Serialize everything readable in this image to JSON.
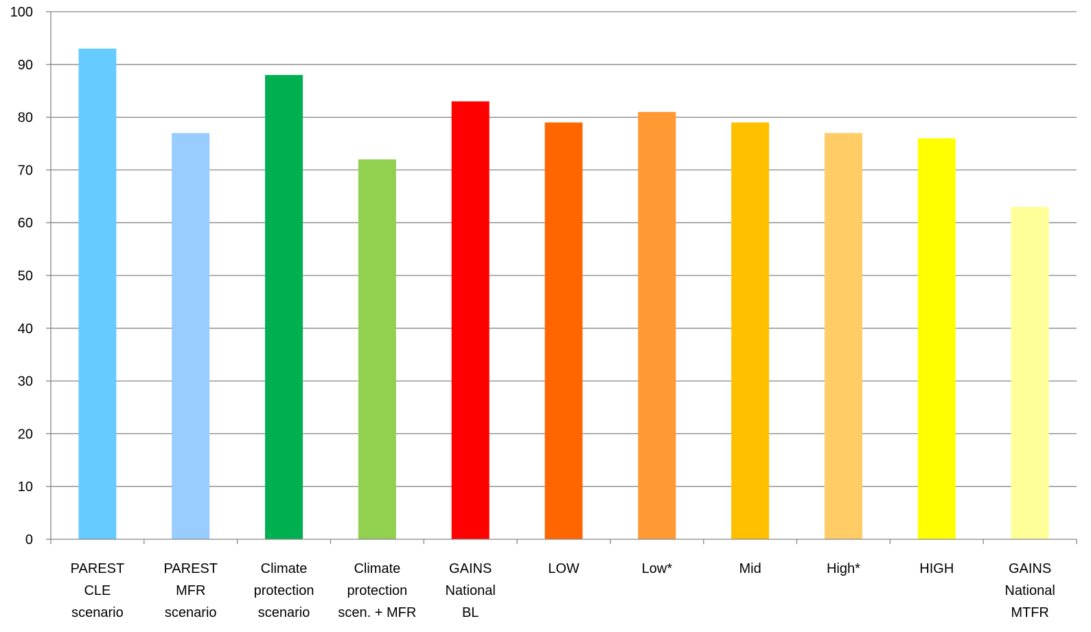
{
  "chart_data": {
    "type": "bar",
    "title": "",
    "xlabel": "",
    "ylabel": "",
    "ylim": [
      0,
      100
    ],
    "yticks": [
      0,
      10,
      20,
      30,
      40,
      50,
      60,
      70,
      80,
      90,
      100
    ],
    "grid": "horizontal",
    "legend": "none",
    "categories": [
      "PAREST CLE scenario",
      "PAREST MFR scenario",
      "Climate protection scenario",
      "Climate protection scen. + MFR",
      "GAINS National BL",
      "LOW",
      "Low*",
      "Mid",
      "High*",
      "HIGH",
      "GAINS National MTFR"
    ],
    "category_label_lines": [
      [
        "PAREST",
        "CLE",
        "scenario"
      ],
      [
        "PAREST",
        "MFR",
        "scenario"
      ],
      [
        "Climate",
        "protection",
        "scenario"
      ],
      [
        "Climate",
        "protection",
        "scen. + MFR"
      ],
      [
        "GAINS",
        "National",
        "BL"
      ],
      [
        "LOW"
      ],
      [
        "Low*"
      ],
      [
        "Mid"
      ],
      [
        "High*"
      ],
      [
        "HIGH"
      ],
      [
        "GAINS",
        "National",
        "MTFR"
      ]
    ],
    "values": [
      93,
      77,
      88,
      72,
      83,
      79,
      81,
      79,
      77,
      76,
      63
    ],
    "colors": [
      "#66ccff",
      "#99ccff",
      "#00b050",
      "#92d050",
      "#ff0000",
      "#ff6600",
      "#ff9933",
      "#ffc000",
      "#ffcc66",
      "#ffff00",
      "#ffff99"
    ]
  }
}
